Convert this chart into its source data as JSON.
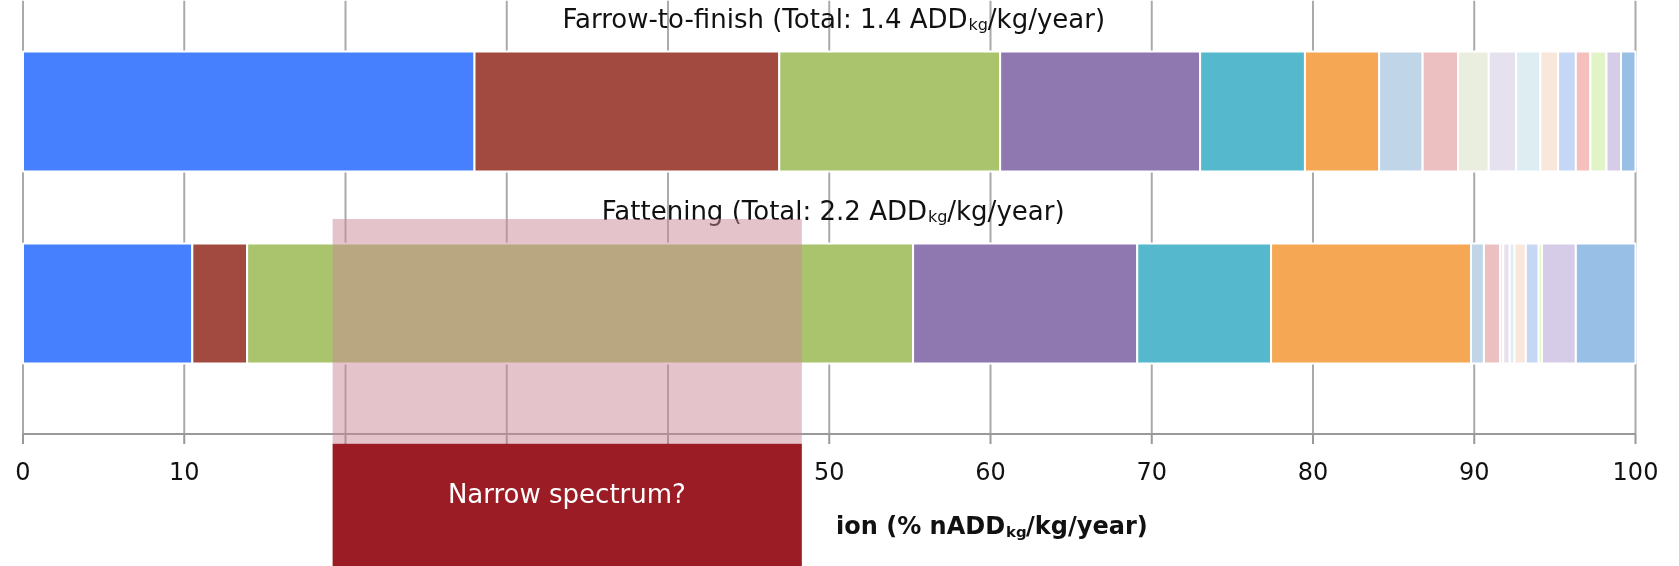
{
  "chart_data": {
    "type": "bar",
    "orientation": "horizontal",
    "stacked": true,
    "categories": [
      "Farrow-to-finish (Total: 1.4 ADD$_{kg}$/kg/year)",
      "Fattening (Total: 2.2 ADD$_{kg}$/kg/year)"
    ],
    "xlabel": "ion (% nADD$_{kg}$/kg/year)",
    "xlim": [
      0,
      100
    ],
    "xticks": [
      0,
      10,
      {
        "value": 20,
        "label": null
      },
      {
        "value": 30,
        "label": null
      },
      {
        "value": 40,
        "label": null
      },
      50,
      60,
      70,
      80,
      90,
      100
    ],
    "grid": "x",
    "series": [
      {
        "color": "#4680ff",
        "values": [
          28.0,
          10.5
        ]
      },
      {
        "color": "#a24a3f",
        "values": [
          18.9,
          3.4
        ]
      },
      {
        "color": "#a9c46c",
        "values": [
          13.7,
          41.3
        ]
      },
      {
        "color": "#8f78b0",
        "values": [
          12.4,
          13.9
        ]
      },
      {
        "color": "#55b8cc",
        "values": [
          6.5,
          8.3
        ]
      },
      {
        "color": "#f5a753",
        "values": [
          4.6,
          12.4
        ]
      },
      {
        "color": "#c0d6e8",
        "values": [
          2.7,
          0.8
        ]
      },
      {
        "color": "#ecc0c0",
        "values": [
          2.2,
          1.0
        ]
      },
      {
        "color": "#eaeedf",
        "values": [
          1.9,
          0.2
        ]
      },
      {
        "color": "#e6e1ef",
        "values": [
          1.7,
          0.4
        ]
      },
      {
        "color": "#ddedf2",
        "values": [
          1.5,
          0.3
        ]
      },
      {
        "color": "#fae7dc",
        "values": [
          1.1,
          0.7
        ]
      },
      {
        "color": "#c6d6f5",
        "values": [
          1.1,
          0.8
        ]
      },
      {
        "color": "#f5bfbb",
        "values": [
          0.9,
          0.0
        ]
      },
      {
        "color": "#e0f4c8",
        "values": [
          1.0,
          0.2
        ]
      },
      {
        "color": "#d6cce8",
        "values": [
          0.9,
          2.1
        ]
      },
      {
        "color": "#98bfe6",
        "values": [
          0.9,
          3.7
        ]
      }
    ],
    "bands": [
      {
        "axis": "x",
        "from": 19.2,
        "to": 48.3,
        "label": "Narrow spectrum?",
        "color": "#c98a95"
      }
    ]
  }
}
